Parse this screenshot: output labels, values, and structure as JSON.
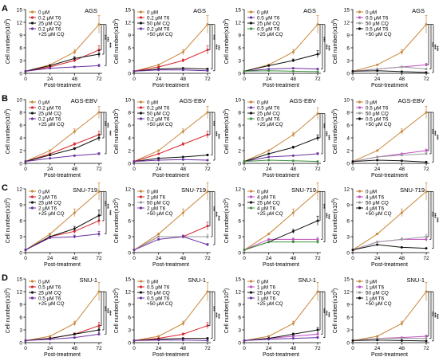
{
  "figure": {
    "x_label": "Post-treatment",
    "y_label": "Cell number(x10",
    "y_label_sup": "5",
    "y_label_end": ")",
    "x_ticks": [
      0,
      24,
      48,
      72
    ],
    "sig_label": "***",
    "colors": {
      "control": "#c8873a",
      "red": "#d9262b",
      "black": "#111111",
      "purple": "#6b2fa0",
      "green": "#3f8f3f",
      "magenta": "#c04fc0",
      "gray": "#9a9a9a"
    }
  },
  "chart_data": [
    {
      "panel": "A",
      "title": "AGS",
      "type": "line",
      "ylim": [
        0,
        15
      ],
      "yticks": [
        0,
        3,
        6,
        9,
        12,
        15
      ],
      "x": [
        0,
        24,
        48,
        72
      ],
      "series": [
        {
          "name": "0 μM",
          "color": "#c8873a",
          "values": [
            0.5,
            2.0,
            5.0,
            11.5
          ]
        },
        {
          "name": "0.2 μM T6",
          "color": "#d9262b",
          "values": [
            0.5,
            1.5,
            3.0,
            5.5
          ]
        },
        {
          "name": "25 μM CQ",
          "color": "#111111",
          "values": [
            0.5,
            1.8,
            3.5,
            4.5
          ]
        },
        {
          "name": "0.2 μM T6 +25 μM CQ",
          "color": "#6b2fa0",
          "values": [
            0.5,
            1.2,
            1.5,
            1.8
          ]
        }
      ]
    },
    {
      "panel": "",
      "title": "AGS",
      "type": "line",
      "ylim": [
        0,
        15
      ],
      "yticks": [
        0,
        3,
        6,
        9,
        12,
        15
      ],
      "x": [
        0,
        24,
        48,
        72
      ],
      "series": [
        {
          "name": "0 μM",
          "color": "#c8873a",
          "values": [
            0.5,
            2.0,
            5.0,
            11.5
          ]
        },
        {
          "name": "0.2 μM T6",
          "color": "#d9262b",
          "values": [
            0.5,
            1.5,
            3.0,
            5.5
          ]
        },
        {
          "name": "50 μM CQ",
          "color": "#111111",
          "values": [
            0.5,
            1.0,
            1.2,
            1.0
          ]
        },
        {
          "name": "0.2 μM T6 +50 μM CQ",
          "color": "#6b2fa0",
          "values": [
            0.5,
            0.8,
            0.8,
            0.6
          ]
        }
      ]
    },
    {
      "panel": "",
      "title": "AGS",
      "type": "line",
      "ylim": [
        0,
        15
      ],
      "yticks": [
        0,
        3,
        6,
        9,
        12,
        15
      ],
      "x": [
        0,
        24,
        48,
        72
      ],
      "series": [
        {
          "name": "0 μM",
          "color": "#c8873a",
          "values": [
            0.5,
            2.0,
            5.0,
            11.5
          ]
        },
        {
          "name": "0.5 μM T6",
          "color": "#6b2fa0",
          "values": [
            0.5,
            1.0,
            1.2,
            1.0
          ]
        },
        {
          "name": "25 μM CQ",
          "color": "#111111",
          "values": [
            0.5,
            1.8,
            3.0,
            4.5
          ]
        },
        {
          "name": "0.5 μM T6 +25 μM CQ",
          "color": "#3f8f3f",
          "values": [
            0.5,
            0.6,
            0.5,
            0.4
          ]
        }
      ]
    },
    {
      "panel": "",
      "title": "AGS",
      "type": "line",
      "ylim": [
        0,
        15
      ],
      "yticks": [
        0,
        3,
        6,
        9,
        12,
        15
      ],
      "x": [
        0,
        24,
        48,
        72
      ],
      "series": [
        {
          "name": "0 μM",
          "color": "#c8873a",
          "values": [
            0.5,
            2.0,
            5.0,
            11.5
          ]
        },
        {
          "name": "0.5 μM T6",
          "color": "#c04fc0",
          "values": [
            0.5,
            1.0,
            1.5,
            2.0
          ]
        },
        {
          "name": "50 μM CQ",
          "color": "#9a9a9a",
          "values": [
            0.5,
            1.0,
            1.5,
            1.0
          ]
        },
        {
          "name": "0.5 μM T6 +50 μM CQ",
          "color": "#111111",
          "values": [
            0.5,
            0.6,
            0.4,
            0.2
          ]
        }
      ]
    },
    {
      "panel": "B",
      "title": "AGS-EBV",
      "type": "line",
      "ylim": [
        0,
        10
      ],
      "yticks": [
        0,
        2,
        4,
        6,
        8,
        10
      ],
      "x": [
        0,
        24,
        48,
        72
      ],
      "series": [
        {
          "name": "0 μM",
          "color": "#c8873a",
          "values": [
            0.3,
            2.0,
            5.0,
            8.0
          ]
        },
        {
          "name": "0.2 μM T6",
          "color": "#d9262b",
          "values": [
            0.3,
            1.5,
            3.0,
            4.5
          ]
        },
        {
          "name": "25 μM CQ",
          "color": "#111111",
          "values": [
            0.3,
            1.3,
            2.3,
            4.0
          ]
        },
        {
          "name": "0.2 μM T6 +25 μM CQ",
          "color": "#6b2fa0",
          "values": [
            0.3,
            0.8,
            1.2,
            1.5
          ]
        }
      ]
    },
    {
      "panel": "",
      "title": "AGS-EBV",
      "type": "line",
      "ylim": [
        0,
        10
      ],
      "yticks": [
        0,
        2,
        4,
        6,
        8,
        10
      ],
      "x": [
        0,
        24,
        48,
        72
      ],
      "series": [
        {
          "name": "0 μM",
          "color": "#c8873a",
          "values": [
            0.3,
            2.0,
            5.0,
            8.0
          ]
        },
        {
          "name": "0.2 μM T6",
          "color": "#d9262b",
          "values": [
            0.3,
            1.5,
            3.0,
            4.5
          ]
        },
        {
          "name": "50 μM CQ",
          "color": "#111111",
          "values": [
            0.3,
            0.8,
            1.0,
            1.3
          ]
        },
        {
          "name": "0.2 μM T6 +50 μM CQ",
          "color": "#6b2fa0",
          "values": [
            0.3,
            0.5,
            0.6,
            0.5
          ]
        }
      ]
    },
    {
      "panel": "",
      "title": "AGS-EBV",
      "type": "line",
      "ylim": [
        0,
        10
      ],
      "yticks": [
        0,
        2,
        4,
        6,
        8,
        10
      ],
      "x": [
        0,
        24,
        48,
        72
      ],
      "series": [
        {
          "name": "0 μM",
          "color": "#c8873a",
          "values": [
            0.3,
            2.0,
            4.5,
            7.8
          ]
        },
        {
          "name": "0.5 μM T6",
          "color": "#6b2fa0",
          "values": [
            0.3,
            1.0,
            1.2,
            1.5
          ]
        },
        {
          "name": "25 μM CQ",
          "color": "#111111",
          "values": [
            0.3,
            1.5,
            2.5,
            4.0
          ]
        },
        {
          "name": "0.5 μM T6 +25 μM CQ",
          "color": "#3f8f3f",
          "values": [
            0.3,
            0.5,
            0.4,
            0.3
          ]
        }
      ]
    },
    {
      "panel": "",
      "title": "AGS-EBV",
      "type": "line",
      "ylim": [
        0,
        10
      ],
      "yticks": [
        0,
        2,
        4,
        6,
        8,
        10
      ],
      "x": [
        0,
        24,
        48,
        72
      ],
      "series": [
        {
          "name": "0 μM",
          "color": "#c8873a",
          "values": [
            0.3,
            2.0,
            5.0,
            8.0
          ]
        },
        {
          "name": "0.5 μM T6",
          "color": "#c04fc0",
          "values": [
            0.3,
            1.0,
            1.5,
            2.0
          ]
        },
        {
          "name": "50 μM CQ",
          "color": "#9a9a9a",
          "values": [
            0.3,
            1.0,
            1.3,
            1.5
          ]
        },
        {
          "name": "0.5 μM T6 +50 μM CQ",
          "color": "#111111",
          "values": [
            0.3,
            0.5,
            0.4,
            0.2
          ]
        }
      ]
    },
    {
      "panel": "C",
      "title": "SNU-719",
      "type": "line",
      "ylim": [
        0,
        12
      ],
      "yticks": [
        0,
        3,
        6,
        9,
        12
      ],
      "x": [
        0,
        24,
        48,
        72
      ],
      "series": [
        {
          "name": "0 μM",
          "color": "#c8873a",
          "values": [
            0.5,
            3.5,
            7.5,
            11.5
          ]
        },
        {
          "name": "2 μM T6",
          "color": "#d9262b",
          "values": [
            0.5,
            3.0,
            4.0,
            6.0
          ]
        },
        {
          "name": "25 μM CQ",
          "color": "#111111",
          "values": [
            0.5,
            3.0,
            4.5,
            7.0
          ]
        },
        {
          "name": "2 μM T6 +25 μM CQ",
          "color": "#6b2fa0",
          "values": [
            0.5,
            2.8,
            3.0,
            3.5
          ]
        }
      ]
    },
    {
      "panel": "",
      "title": "SNU-719",
      "type": "line",
      "ylim": [
        0,
        12
      ],
      "yticks": [
        0,
        3,
        6,
        9,
        12
      ],
      "x": [
        0,
        24,
        48,
        72
      ],
      "series": [
        {
          "name": "0 μM",
          "color": "#c8873a",
          "values": [
            0.5,
            3.5,
            7.5,
            11.5
          ]
        },
        {
          "name": "2 μM T6",
          "color": "#d9262b",
          "values": [
            0.5,
            3.0,
            3.0,
            5.0
          ]
        },
        {
          "name": "50 μM CQ",
          "color": "#9a9a9a",
          "values": [
            0.5,
            3.0,
            3.0,
            3.0
          ]
        },
        {
          "name": "2 μM T6 +50 μM CQ",
          "color": "#6b2fa0",
          "values": [
            0.5,
            2.5,
            3.0,
            1.5
          ]
        }
      ]
    },
    {
      "panel": "",
      "title": "SNU-719",
      "type": "line",
      "ylim": [
        0,
        12
      ],
      "yticks": [
        0,
        3,
        6,
        9,
        12
      ],
      "x": [
        0,
        24,
        48,
        72
      ],
      "series": [
        {
          "name": "0 μM",
          "color": "#c8873a",
          "values": [
            0.5,
            3.5,
            7.5,
            11.5
          ]
        },
        {
          "name": "4 μM T6",
          "color": "#c04fc0",
          "values": [
            0.5,
            2.5,
            2.5,
            2.5
          ]
        },
        {
          "name": "25 μM CQ",
          "color": "#111111",
          "values": [
            0.5,
            2.0,
            4.0,
            6.0
          ]
        },
        {
          "name": "4 μM T6 +25 μM CQ",
          "color": "#3f8f3f",
          "values": [
            0.5,
            2.0,
            2.0,
            2.0
          ]
        }
      ]
    },
    {
      "panel": "",
      "title": "SNU-719",
      "type": "line",
      "ylim": [
        0,
        12
      ],
      "yticks": [
        0,
        3,
        6,
        9,
        12
      ],
      "x": [
        0,
        24,
        48,
        72
      ],
      "series": [
        {
          "name": "0 μM",
          "color": "#c8873a",
          "values": [
            0.5,
            3.5,
            7.5,
            11.5
          ]
        },
        {
          "name": "4 μM T6",
          "color": "#c04fc0",
          "values": [
            0.5,
            2.0,
            2.5,
            2.5
          ]
        },
        {
          "name": "50 μM CQ",
          "color": "#9a9a9a",
          "values": [
            0.5,
            2.0,
            2.5,
            3.0
          ]
        },
        {
          "name": "4 μM T6 +50 μM CQ",
          "color": "#111111",
          "values": [
            0.5,
            1.5,
            1.0,
            0.8
          ]
        }
      ]
    },
    {
      "panel": "D",
      "title": "SNU-1",
      "type": "line",
      "ylim": [
        0,
        15
      ],
      "yticks": [
        0,
        3,
        6,
        9,
        12,
        15
      ],
      "x": [
        0,
        24,
        48,
        72
      ],
      "series": [
        {
          "name": "0 μM",
          "color": "#c8873a",
          "values": [
            0.5,
            1.5,
            4.5,
            12.0
          ]
        },
        {
          "name": "0.5 μM T6",
          "color": "#d9262b",
          "values": [
            0.5,
            1.0,
            2.0,
            4.0
          ]
        },
        {
          "name": "25 μM CQ",
          "color": "#111111",
          "values": [
            0.5,
            1.0,
            2.0,
            3.0
          ]
        },
        {
          "name": "0.5 μM T6 +25 μM CQ",
          "color": "#6b2fa0",
          "values": [
            0.5,
            0.8,
            1.2,
            2.0
          ]
        }
      ]
    },
    {
      "panel": "",
      "title": "SNU-1",
      "type": "line",
      "ylim": [
        0,
        15
      ],
      "yticks": [
        0,
        3,
        6,
        9,
        12,
        15
      ],
      "x": [
        0,
        24,
        48,
        72
      ],
      "series": [
        {
          "name": "0 μM",
          "color": "#c8873a",
          "values": [
            0.5,
            1.5,
            4.5,
            12.0
          ]
        },
        {
          "name": "0.5 μM T6",
          "color": "#d9262b",
          "values": [
            0.5,
            1.0,
            2.0,
            4.0
          ]
        },
        {
          "name": "50 μM CQ",
          "color": "#111111",
          "values": [
            0.5,
            0.8,
            1.0,
            1.0
          ]
        },
        {
          "name": "0.5 μM T6 +50 μM CQ",
          "color": "#6b2fa0",
          "values": [
            0.5,
            0.6,
            0.6,
            0.5
          ]
        }
      ]
    },
    {
      "panel": "",
      "title": "SNU-1",
      "type": "line",
      "ylim": [
        0,
        15
      ],
      "yticks": [
        0,
        3,
        6,
        9,
        12,
        15
      ],
      "x": [
        0,
        24,
        48,
        72
      ],
      "series": [
        {
          "name": "0 μM",
          "color": "#c8873a",
          "values": [
            0.5,
            1.5,
            4.5,
            12.0
          ]
        },
        {
          "name": "1 μM T6",
          "color": "#c04fc0",
          "values": [
            0.5,
            1.0,
            1.5,
            2.0
          ]
        },
        {
          "name": "25 μM CQ",
          "color": "#111111",
          "values": [
            0.5,
            1.0,
            2.0,
            3.0
          ]
        },
        {
          "name": "1 μM T6 +25 μM CQ",
          "color": "#6b2fa0",
          "values": [
            0.5,
            0.8,
            1.0,
            1.2
          ]
        }
      ]
    },
    {
      "panel": "",
      "title": "SNU-1",
      "type": "line",
      "ylim": [
        0,
        15
      ],
      "yticks": [
        0,
        3,
        6,
        9,
        12,
        15
      ],
      "x": [
        0,
        24,
        48,
        72
      ],
      "series": [
        {
          "name": "0 μM",
          "color": "#c8873a",
          "values": [
            0.5,
            1.5,
            4.5,
            12.0
          ]
        },
        {
          "name": "1 μM T6",
          "color": "#c04fc0",
          "values": [
            0.5,
            1.0,
            1.2,
            1.5
          ]
        },
        {
          "name": "50 μM CQ",
          "color": "#9a9a9a",
          "values": [
            0.5,
            1.0,
            1.0,
            1.0
          ]
        },
        {
          "name": "1 μM T6 +50 μM CQ",
          "color": "#111111",
          "values": [
            0.5,
            0.6,
            0.5,
            0.4
          ]
        }
      ]
    }
  ]
}
